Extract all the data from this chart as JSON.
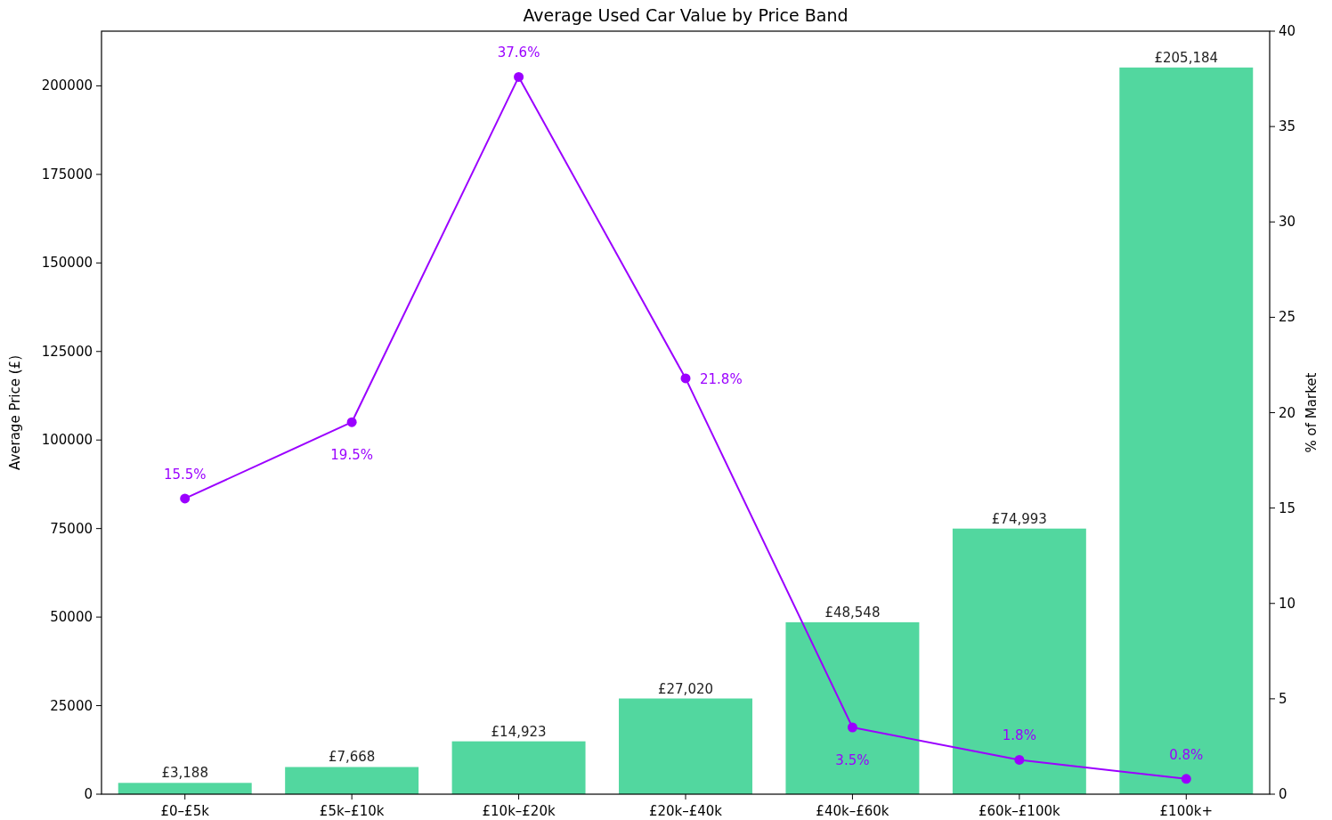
{
  "chart_data": {
    "type": "bar",
    "title": "Average Used Car Value by Price Band",
    "ylabel": "Average Price (£)",
    "y2label": "% of Market",
    "categories": [
      "£0–£5k",
      "£5k–£10k",
      "£10k–£20k",
      "£20k–£40k",
      "£40k–£60k",
      "£60k–£100k",
      "£100k+"
    ],
    "series": [
      {
        "color": "#52d79f",
        "values": [
          3188,
          7668,
          14923,
          27020,
          48548,
          74993,
          205184
        ],
        "value_labels": [
          "£3,188",
          "£7,668",
          "£14,923",
          "£27,020",
          "£48,548",
          "£74,993",
          "£205,184"
        ]
      },
      {
        "type": "line",
        "axis": "y2",
        "color": "#9b00ff",
        "marker": "circle",
        "line_style": "solid",
        "values": [
          15.5,
          19.5,
          37.6,
          21.8,
          3.5,
          1.8,
          0.8
        ],
        "value_labels": [
          "15.5%",
          "19.5%",
          "37.6%",
          "21.8%",
          "3.5%",
          "1.8%",
          "0.8%"
        ]
      }
    ],
    "ylim": [
      0,
      215443
    ],
    "yticks": [
      0,
      25000,
      50000,
      75000,
      100000,
      125000,
      150000,
      175000,
      200000
    ],
    "y2lim": [
      0,
      40
    ],
    "y2ticks": [
      0,
      5,
      10,
      15,
      20,
      25,
      30,
      35,
      40
    ],
    "grid": false
  }
}
